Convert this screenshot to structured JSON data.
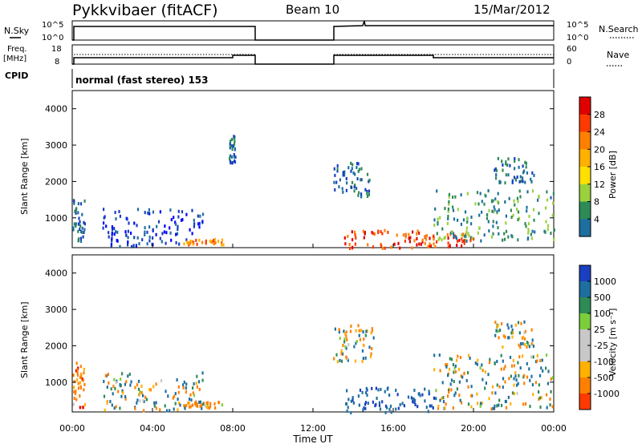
{
  "header": {
    "station": "Pykkvibaer (fitACF)",
    "beam": "Beam 10",
    "date": "15/Mar/2012"
  },
  "left_labels": {
    "nsky": "N.Sky",
    "freq_line1": "Freq.",
    "freq_line2": "[MHz]",
    "cpid": "CPID"
  },
  "right_labels": {
    "nsearch": "N.Search",
    "nave": "Nave"
  },
  "cpid_text": "normal (fast stereo) 153",
  "noise_panel": {
    "left_ticks": [
      "10^5",
      "10^0"
    ],
    "right_ticks": [
      "10^5",
      "10^0"
    ]
  },
  "freq_panel": {
    "left_ticks": [
      "18",
      "8"
    ],
    "right_ticks": [
      "60",
      "0"
    ]
  },
  "xaxis": {
    "title": "Time UT",
    "ticks": [
      "00:00",
      "04:00",
      "08:00",
      "12:00",
      "16:00",
      "20:00",
      "00:00"
    ]
  },
  "yaxis": {
    "title": "Slant Range [km]",
    "ticks": [
      "4000",
      "3000",
      "2000",
      "1000"
    ]
  },
  "power_scale": {
    "title": "Power [dB]",
    "labels": [
      "28",
      "24",
      "20",
      "16",
      "12",
      "8",
      "4"
    ],
    "colors": [
      "#e00000",
      "#ff3a00",
      "#ff8000",
      "#ffb000",
      "#ffe000",
      "#9ad13c",
      "#2e8b57",
      "#1e6fa0",
      "#1a3fc0",
      "#0000ff"
    ]
  },
  "velocity_scale": {
    "title": "Velocity [m s⁻¹]",
    "labels": [
      "1000",
      "500",
      "100",
      "25",
      "-25",
      "-100",
      "-500",
      "-1000"
    ],
    "colors": [
      "#1a3fc0",
      "#1e6fa0",
      "#2e8b57",
      "#7ccd3c",
      "#c8c8c8",
      "#c8c8c8",
      "#ffb000",
      "#ff8000",
      "#ff3a00",
      "#e00000"
    ]
  },
  "chart_data": [
    {
      "type": "heatmap",
      "title": "Power [dB]",
      "ylabel": "Slant Range [km]",
      "xlabel": "Time UT",
      "x_range_hours": [
        0,
        24
      ],
      "ylim": [
        180,
        4500
      ],
      "colorbar_ticks": [
        4,
        8,
        12,
        16,
        20,
        24,
        28
      ],
      "regions": [
        {
          "t0": 0.0,
          "t1": 0.6,
          "r0": 300,
          "r1": 1600,
          "level": 2
        },
        {
          "t0": 1.5,
          "t1": 6.5,
          "r0": 250,
          "r1": 1300,
          "level": 1
        },
        {
          "t0": 5.5,
          "t1": 7.5,
          "r0": 300,
          "r1": 450,
          "level": 7
        },
        {
          "t0": 7.8,
          "t1": 8.1,
          "r0": 2500,
          "r1": 3300,
          "level": 2
        },
        {
          "t0": 13.0,
          "t1": 14.8,
          "r0": 1600,
          "r1": 2600,
          "level": 2
        },
        {
          "t0": 13.5,
          "t1": 17.5,
          "r0": 200,
          "r1": 700,
          "level": 8
        },
        {
          "t0": 17.5,
          "t1": 20.0,
          "r0": 200,
          "r1": 600,
          "level": 8
        },
        {
          "t0": 18.0,
          "t1": 24.0,
          "r0": 400,
          "r1": 1800,
          "level": 3
        },
        {
          "t0": 21.0,
          "t1": 23.0,
          "r0": 2000,
          "r1": 2700,
          "level": 2
        }
      ]
    },
    {
      "type": "heatmap",
      "title": "Velocity [m s⁻¹]",
      "ylabel": "Slant Range [km]",
      "xlabel": "Time UT",
      "x_range_hours": [
        0,
        24
      ],
      "ylim": [
        180,
        4500
      ],
      "colorbar_ticks": [
        -1000,
        -500,
        -100,
        -25,
        25,
        100,
        500,
        1000
      ],
      "regions": [
        {
          "t0": 0.0,
          "t1": 0.6,
          "r0": 300,
          "r1": 1600,
          "v": -300
        },
        {
          "t0": 1.5,
          "t1": 6.5,
          "r0": 250,
          "r1": 1300,
          "v": 0
        },
        {
          "t0": 5.5,
          "t1": 7.5,
          "r0": 300,
          "r1": 500,
          "v": -200
        },
        {
          "t0": 13.0,
          "t1": 15.0,
          "r0": 1600,
          "r1": 2600,
          "v": 0
        },
        {
          "t0": 13.5,
          "t1": 18.0,
          "r0": 200,
          "r1": 900,
          "v": 400
        },
        {
          "t0": 18.0,
          "t1": 24.0,
          "r0": 300,
          "r1": 1800,
          "v": 0
        },
        {
          "t0": 21.0,
          "t1": 23.0,
          "r0": 2000,
          "r1": 2700,
          "v": 0
        }
      ]
    }
  ]
}
